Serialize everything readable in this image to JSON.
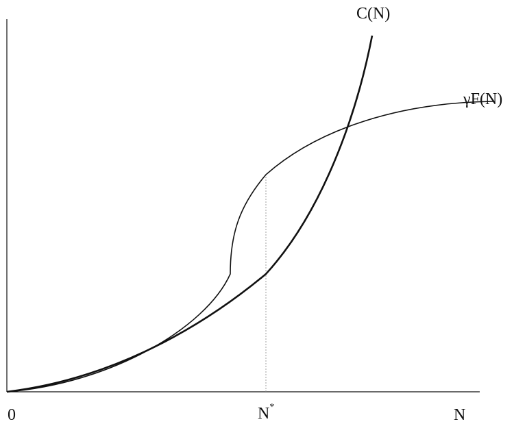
{
  "labels": {
    "cost_curve": "C(N)",
    "benefit_curve": "γF(N)",
    "origin": "0",
    "n_star_base": "N",
    "n_star_sup": "*",
    "x_axis": "N"
  },
  "colors": {
    "ink": "#111111",
    "guide": "#888888"
  }
}
